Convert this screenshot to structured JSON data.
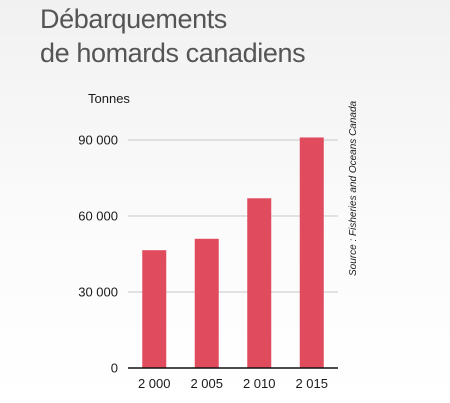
{
  "chart_data": {
    "type": "bar",
    "title": [
      "Débarquements",
      "de homards canadiens"
    ],
    "ylabel": "Tonnes",
    "source": "Source : Fisheries and Oceans Canada",
    "categories": [
      "2 000",
      "2 005",
      "2 010",
      "2 015"
    ],
    "values": [
      46500,
      51000,
      67000,
      91000
    ],
    "ylim": [
      0,
      90000
    ],
    "yticks": [
      0,
      30000,
      60000,
      90000
    ],
    "ytick_labels": [
      "0",
      "30 000",
      "60 000",
      "90 000"
    ],
    "grid": true,
    "bar_color": "#e04b5e",
    "grid_color": "#c8c8c8"
  }
}
